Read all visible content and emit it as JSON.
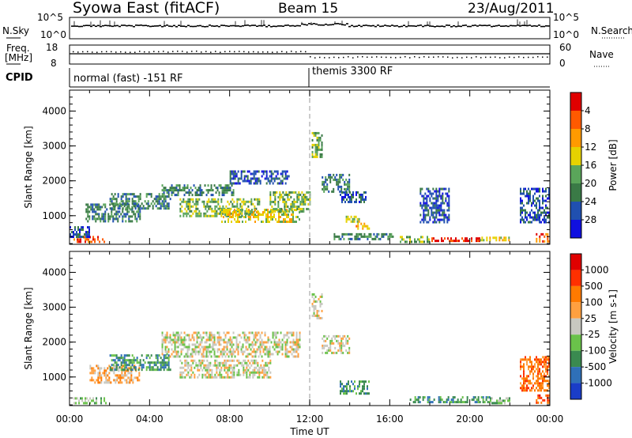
{
  "header": {
    "title": "Syowa East (fitACF)",
    "beam": "Beam 15",
    "date": "23/Aug/2011"
  },
  "strips": {
    "nsky": {
      "label": "N.Sky",
      "ticks": [
        "10^5",
        "10^0"
      ]
    },
    "nsearch": {
      "label": "N.Search",
      "ticks": [
        "10^5",
        "10^0"
      ]
    },
    "freq": {
      "label_line1": "Freq.",
      "label_line2": "[MHz]",
      "ticks": [
        "18",
        "8"
      ]
    },
    "nave": {
      "label": "Nave",
      "ticks": [
        "60",
        "0"
      ]
    },
    "cpid": {
      "label": "CPID",
      "mode1": "normal (fast) -151 RF",
      "mode2": "themis 3300 RF"
    }
  },
  "chart_data": [
    {
      "type": "heatmap",
      "panel": "power",
      "xlabel": "Time UT",
      "ylabel": "Slant Range [km]",
      "x_ticks": [
        "00:00",
        "04:00",
        "08:00",
        "12:00",
        "16:00",
        "20:00",
        "00:00"
      ],
      "xlim_hours": [
        0,
        24
      ],
      "ylim_km": [
        180,
        4600
      ],
      "y_ticks": [
        1000,
        2000,
        3000,
        4000
      ],
      "mode_change_hour": 12.0,
      "colorbar": {
        "label": "Power [dB]",
        "ticks": [
          "4",
          "8",
          "12",
          "16",
          "20",
          "24",
          "28"
        ],
        "colors": [
          "#1010e0",
          "#2050b0",
          "#3a7a46",
          "#5aa55a",
          "#e6d200",
          "#ff9a00",
          "#ff5a00",
          "#e00000"
        ]
      },
      "regions": [
        {
          "t0": 0.2,
          "t1": 1.8,
          "r0": 230,
          "r1": 420,
          "level": 6
        },
        {
          "t0": 0.0,
          "t1": 1.0,
          "r0": 380,
          "r1": 700,
          "level": 1
        },
        {
          "t0": 0.8,
          "t1": 3.5,
          "r0": 850,
          "r1": 1350,
          "level": 2
        },
        {
          "t0": 2.0,
          "t1": 5.0,
          "r0": 1200,
          "r1": 1650,
          "level": 2
        },
        {
          "t0": 4.6,
          "t1": 8.2,
          "r0": 1600,
          "r1": 1900,
          "level": 2
        },
        {
          "t0": 5.5,
          "t1": 9.5,
          "r0": 1000,
          "r1": 1500,
          "level": 3
        },
        {
          "t0": 7.5,
          "t1": 11.5,
          "r0": 850,
          "r1": 1200,
          "level": 4
        },
        {
          "t0": 8.0,
          "t1": 11.0,
          "r0": 1900,
          "r1": 2300,
          "level": 1
        },
        {
          "t0": 10.0,
          "t1": 12.0,
          "r0": 1150,
          "r1": 1700,
          "level": 3
        },
        {
          "t0": 12.1,
          "t1": 12.6,
          "r0": 2700,
          "r1": 3400,
          "level": 3
        },
        {
          "t0": 12.6,
          "t1": 14.0,
          "r0": 1700,
          "r1": 2200,
          "level": 2
        },
        {
          "t0": 13.5,
          "t1": 14.8,
          "r0": 1400,
          "r1": 1700,
          "level": 1
        },
        {
          "t0": 14.3,
          "t1": 15.0,
          "r0": 600,
          "r1": 800,
          "level": 5
        },
        {
          "t0": 13.8,
          "t1": 14.5,
          "r0": 850,
          "r1": 1000,
          "level": 4
        },
        {
          "t0": 13.2,
          "t1": 16.2,
          "r0": 300,
          "r1": 500,
          "level": 2
        },
        {
          "t0": 16.5,
          "t1": 18.0,
          "r0": 280,
          "r1": 420,
          "level": 3
        },
        {
          "t0": 18.0,
          "t1": 20.5,
          "r0": 260,
          "r1": 380,
          "level": 7
        },
        {
          "t0": 20.5,
          "t1": 22.0,
          "r0": 280,
          "r1": 400,
          "level": 4
        },
        {
          "t0": 23.3,
          "t1": 24.0,
          "r0": 250,
          "r1": 500,
          "level": 6
        },
        {
          "t0": 22.5,
          "t1": 24.0,
          "r0": 800,
          "r1": 1800,
          "level": 1
        },
        {
          "t0": 17.5,
          "t1": 19.0,
          "r0": 800,
          "r1": 1800,
          "level": 1
        }
      ]
    },
    {
      "type": "heatmap",
      "panel": "velocity",
      "xlabel": "Time UT",
      "ylabel": "Slant Range [km]",
      "x_ticks": [
        "00:00",
        "04:00",
        "08:00",
        "12:00",
        "16:00",
        "20:00",
        "00:00"
      ],
      "xlim_hours": [
        0,
        24
      ],
      "ylim_km": [
        180,
        4600
      ],
      "y_ticks": [
        1000,
        2000,
        3000,
        4000
      ],
      "mode_change_hour": 12.0,
      "colorbar": {
        "label": "Velocity [m s-1]",
        "ticks": [
          "1000",
          "500",
          "100",
          "25",
          "-25",
          "-100",
          "-500",
          "-1000"
        ],
        "colors": [
          "#1a3dc8",
          "#2f70b8",
          "#3a8a50",
          "#6ac24a",
          "#c8c8c0",
          "#ffa040",
          "#ff7a00",
          "#ff3000",
          "#e00000"
        ]
      },
      "regions": [
        {
          "t0": 0.2,
          "t1": 1.8,
          "r0": 230,
          "r1": 420,
          "level": 3
        },
        {
          "t0": 1.0,
          "t1": 3.5,
          "r0": 850,
          "r1": 1350,
          "level": 5
        },
        {
          "t0": 2.0,
          "t1": 5.0,
          "r0": 1200,
          "r1": 1650,
          "level": 2
        },
        {
          "t0": 4.6,
          "t1": 11.5,
          "r0": 1600,
          "r1": 2300,
          "level": 4
        },
        {
          "t0": 5.5,
          "t1": 10.0,
          "r0": 1000,
          "r1": 1500,
          "level": 4
        },
        {
          "t0": 12.1,
          "t1": 12.6,
          "r0": 2700,
          "r1": 3400,
          "level": 4
        },
        {
          "t0": 12.6,
          "t1": 14.0,
          "r0": 1700,
          "r1": 2200,
          "level": 4
        },
        {
          "t0": 13.5,
          "t1": 15.0,
          "r0": 500,
          "r1": 900,
          "level": 2
        },
        {
          "t0": 17.0,
          "t1": 21.0,
          "r0": 280,
          "r1": 450,
          "level": 2
        },
        {
          "t0": 21.0,
          "t1": 22.0,
          "r0": 280,
          "r1": 420,
          "level": 3
        },
        {
          "t0": 22.5,
          "t1": 24.0,
          "r0": 600,
          "r1": 1600,
          "level": 6
        },
        {
          "t0": 23.3,
          "t1": 24.0,
          "r0": 250,
          "r1": 500,
          "level": 7
        }
      ]
    }
  ]
}
